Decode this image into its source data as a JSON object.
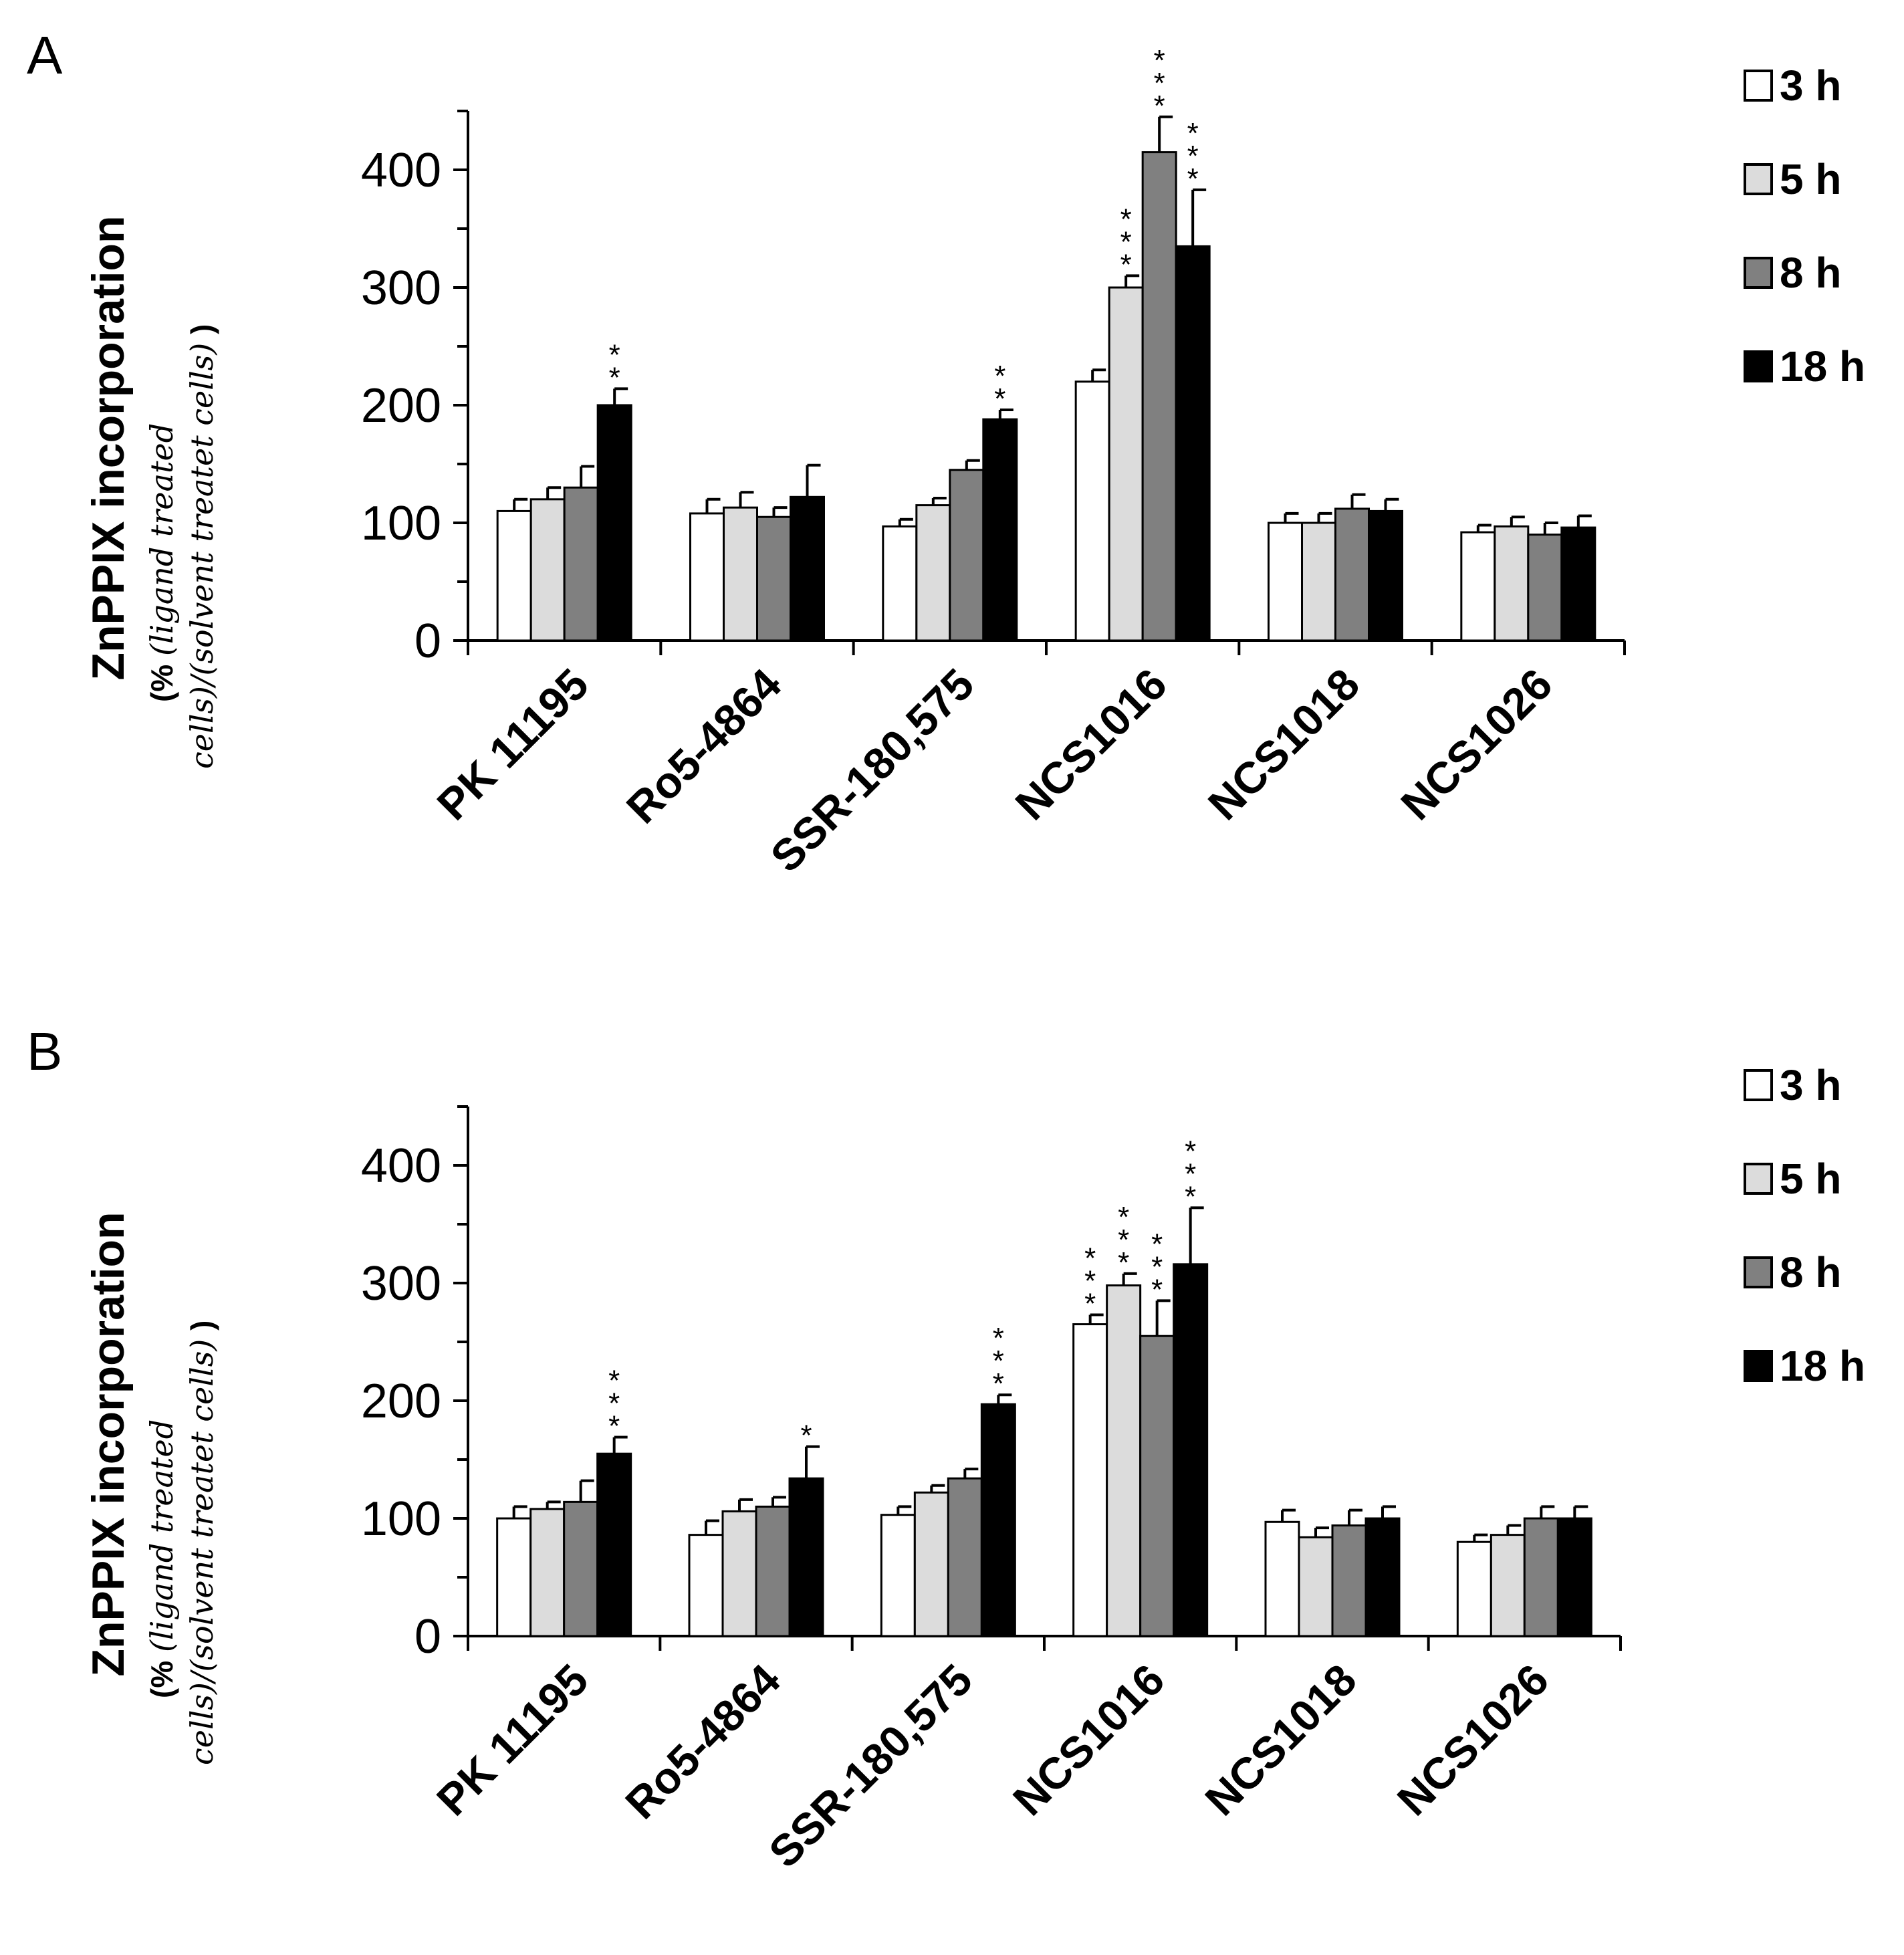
{
  "chart_data": [
    {
      "panel": "A",
      "type": "bar",
      "ylabel": "ZnPPIX incorporation",
      "ylabel_sub": {
        "open": "(%",
        "line1": "(ligand treated",
        "line2": "cells)/(solvent treatet cells)",
        "close": ")"
      },
      "ylim": [
        0,
        450
      ],
      "yticks": [
        "0",
        "100",
        "200",
        "300",
        "400"
      ],
      "categories": [
        "PK 11195",
        "Ro5-4864",
        "SSR-180,575",
        "NCS1016",
        "NCS1018",
        "NCS1026"
      ],
      "series": [
        {
          "name": "3 h",
          "color": "#ffffff",
          "values": [
            110,
            108,
            97,
            220,
            100,
            92
          ],
          "errors": [
            10,
            12,
            6,
            10,
            8,
            6
          ]
        },
        {
          "name": "5 h",
          "color": "#dcdcdc",
          "values": [
            120,
            113,
            115,
            300,
            100,
            97
          ],
          "errors": [
            10,
            13,
            6,
            10,
            8,
            8
          ]
        },
        {
          "name": "8 h",
          "color": "#808080",
          "values": [
            130,
            105,
            145,
            415,
            112,
            90
          ],
          "errors": [
            18,
            8,
            8,
            30,
            12,
            10
          ]
        },
        {
          "name": "18 h",
          "color": "#000000",
          "values": [
            200,
            122,
            188,
            335,
            110,
            96
          ],
          "errors": [
            14,
            27,
            8,
            48,
            10,
            10
          ]
        }
      ],
      "significance": [
        [
          "",
          "",
          "",
          "",
          "",
          ""
        ],
        [
          "",
          "",
          "",
          "***",
          "",
          ""
        ],
        [
          "",
          "",
          "",
          "***",
          "",
          ""
        ],
        [
          "**",
          "",
          "**",
          "***",
          "",
          ""
        ]
      ]
    },
    {
      "panel": "B",
      "type": "bar",
      "ylabel": "ZnPPIX incorporation",
      "ylabel_sub": {
        "open": "(%",
        "line1": "(ligand treated",
        "line2": "cells)/(solvent treatet cells)",
        "close": ")"
      },
      "ylim": [
        0,
        450
      ],
      "yticks": [
        "0",
        "100",
        "200",
        "300",
        "400"
      ],
      "categories": [
        "PK 11195",
        "Ro5-4864",
        "SSR-180,575",
        "NCS1016",
        "NCS1018",
        "NCS1026"
      ],
      "series": [
        {
          "name": "3 h",
          "color": "#ffffff",
          "values": [
            100,
            86,
            103,
            265,
            97,
            80
          ],
          "errors": [
            10,
            12,
            7,
            8,
            10,
            6
          ]
        },
        {
          "name": "5 h",
          "color": "#dcdcdc",
          "values": [
            108,
            106,
            122,
            298,
            84,
            86
          ],
          "errors": [
            6,
            10,
            6,
            10,
            8,
            8
          ]
        },
        {
          "name": "8 h",
          "color": "#808080",
          "values": [
            114,
            110,
            134,
            255,
            94,
            100
          ],
          "errors": [
            18,
            8,
            8,
            30,
            13,
            10
          ]
        },
        {
          "name": "18 h",
          "color": "#000000",
          "values": [
            155,
            134,
            197,
            316,
            100,
            100
          ],
          "errors": [
            14,
            27,
            8,
            48,
            10,
            10
          ]
        }
      ],
      "significance": [
        [
          "",
          "",
          "",
          "***",
          "",
          ""
        ],
        [
          "",
          "",
          "",
          "***",
          "",
          ""
        ],
        [
          "",
          "",
          "",
          "***",
          "",
          ""
        ],
        [
          "***",
          "*",
          "***",
          "***",
          "",
          ""
        ]
      ]
    }
  ]
}
